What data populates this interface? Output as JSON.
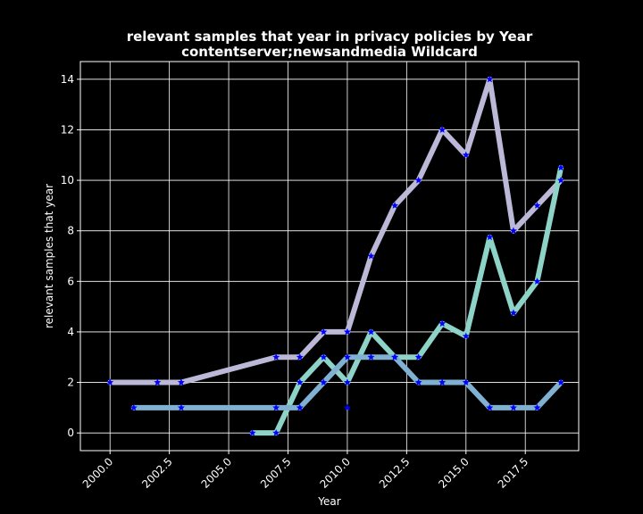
{
  "chart_data": {
    "type": "line",
    "title": "relevant samples that year in privacy policies by Year",
    "subtitle": "contentserver;newsandmedia Wildcard",
    "xlabel": "Year",
    "ylabel": "relevant samples that year",
    "xlim": [
      1998.75,
      2019.75
    ],
    "ylim": [
      -0.7,
      14.7
    ],
    "xticks": [
      2000.0,
      2002.5,
      2005.0,
      2007.5,
      2010.0,
      2012.5,
      2015.0,
      2017.5
    ],
    "xtick_labels": [
      "2000.0",
      "2002.5",
      "2005.0",
      "2007.5",
      "2010.0",
      "2012.5",
      "2015.0",
      "2017.5"
    ],
    "yticks": [
      0,
      2,
      4,
      6,
      8,
      10,
      12,
      14
    ],
    "ytick_labels": [
      "0",
      "2",
      "4",
      "6",
      "8",
      "10",
      "12",
      "14"
    ],
    "grid": true,
    "marker_color": "#0000ff",
    "colors": {
      "background": "#000000",
      "foreground": "#ffffff"
    },
    "series": [
      {
        "color": "#bcb8d8",
        "x": [
          2000,
          2002,
          2003,
          2007,
          2008,
          2009,
          2010,
          2011,
          2012,
          2013,
          2014,
          2015,
          2016,
          2017,
          2018,
          2019
        ],
        "y": [
          2,
          2,
          2,
          3,
          3,
          4,
          4,
          7,
          9,
          10,
          12,
          11,
          14,
          8,
          9,
          10
        ]
      },
      {
        "color": "#8dd3c7",
        "x": [
          2006,
          2007,
          2008,
          2009,
          2010,
          2011,
          2012,
          2013,
          2014,
          2015,
          2016,
          2017,
          2018,
          2019
        ],
        "y": [
          0,
          0,
          2,
          3,
          2,
          4,
          3,
          3,
          4.33,
          3.83,
          7.75,
          4.75,
          6,
          10.5
        ]
      },
      {
        "color": "#80b1d3",
        "x": [
          2001,
          2003,
          2007,
          2008,
          2009,
          2010,
          2011,
          2012,
          2013,
          2014,
          2015,
          2016,
          2017,
          2018,
          2019
        ],
        "y": [
          1,
          1,
          1,
          1,
          2,
          3,
          3,
          3,
          2,
          2,
          2,
          1,
          1,
          1,
          2
        ]
      }
    ],
    "extra_points": [
      {
        "x": 2010,
        "y": 1
      }
    ]
  }
}
